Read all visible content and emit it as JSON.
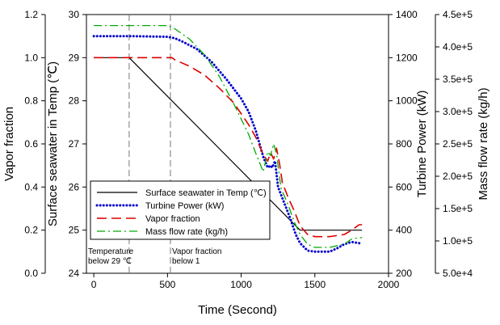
{
  "chart_data": {
    "type": "line",
    "title": "",
    "xlabel": "Time (Second)",
    "xlim": [
      -50,
      2000
    ],
    "xticks": [
      0,
      500,
      1000,
      1500,
      2000
    ],
    "axes": [
      {
        "id": "vapor",
        "label": "Vapor fraction",
        "position": "left-outer",
        "ylim": [
          0,
          1.2
        ],
        "ticks": [
          "0.0",
          "0.2",
          "0.4",
          "0.6",
          "0.8",
          "1.0",
          "1.2"
        ],
        "tick_values": [
          0,
          0.2,
          0.4,
          0.6,
          0.8,
          1.0,
          1.2
        ]
      },
      {
        "id": "temp",
        "label": "Surface seawater in Temp (℃)",
        "position": "left-inner",
        "ylim": [
          24,
          30
        ],
        "ticks": [
          "24",
          "25",
          "26",
          "27",
          "28",
          "29",
          "30"
        ],
        "tick_values": [
          24,
          25,
          26,
          27,
          28,
          29,
          30
        ]
      },
      {
        "id": "power",
        "label": "Turbine Power (kW)",
        "position": "right-inner",
        "ylim": [
          200,
          1400
        ],
        "ticks": [
          "200",
          "400",
          "600",
          "800",
          "1000",
          "1200",
          "1400"
        ],
        "tick_values": [
          200,
          400,
          600,
          800,
          1000,
          1200,
          1400
        ]
      },
      {
        "id": "flow",
        "label": "Mass flow rate (kg/h)",
        "position": "right-outer",
        "ylim": [
          50000,
          450000
        ],
        "ticks": [
          "5.0e+4",
          "1.0e+5",
          "1.5e+5",
          "2.0e+5",
          "2.5e+5",
          "3.0e+5",
          "3.5e+5",
          "4.0e+5",
          "4.5e+5"
        ],
        "tick_values": [
          50000,
          100000,
          150000,
          200000,
          250000,
          300000,
          350000,
          400000,
          450000
        ]
      }
    ],
    "series": [
      {
        "name": "Surface seawater in Temp (℃)",
        "axis": "temp",
        "color": "#000000",
        "style": "solid",
        "x": [
          0,
          240,
          1400,
          1820
        ],
        "y": [
          29,
          29,
          25,
          25
        ]
      },
      {
        "name": "Turbine Power (kW)",
        "axis": "power",
        "color": "#0000cc",
        "style": "dotted",
        "x": [
          0,
          250,
          500,
          550,
          600,
          700,
          800,
          900,
          1000,
          1050,
          1100,
          1150,
          1180,
          1200,
          1210,
          1230,
          1250,
          1290,
          1330,
          1370,
          1400,
          1450,
          1500,
          1600,
          1650,
          1700,
          1750,
          1800,
          1820
        ],
        "y": [
          1300,
          1300,
          1297,
          1290,
          1275,
          1240,
          1180,
          1100,
          1010,
          950,
          860,
          740,
          690,
          700,
          690,
          720,
          600,
          530,
          460,
          380,
          340,
          305,
          300,
          300,
          315,
          335,
          345,
          340,
          335
        ]
      },
      {
        "name": "Vapor fraction",
        "axis": "vapor",
        "color": "#dd0000",
        "style": "dashed",
        "x": [
          0,
          250,
          530,
          550,
          650,
          750,
          850,
          950,
          1050,
          1100,
          1150,
          1180,
          1200,
          1220,
          1240,
          1260,
          1280,
          1320,
          1360,
          1400,
          1450,
          1500,
          1600,
          1700,
          1750,
          1800,
          1820
        ],
        "y": [
          1.0,
          1.0,
          1.0,
          0.99,
          0.96,
          0.92,
          0.86,
          0.79,
          0.69,
          0.63,
          0.55,
          0.52,
          0.56,
          0.53,
          0.58,
          0.51,
          0.42,
          0.35,
          0.29,
          0.22,
          0.18,
          0.17,
          0.17,
          0.18,
          0.2,
          0.225,
          0.225
        ]
      },
      {
        "name": "Mass flow rate (kg/h)",
        "axis": "flow",
        "color": "#00aa00",
        "style": "dashdot",
        "x": [
          0,
          250,
          500,
          550,
          650,
          750,
          850,
          950,
          1050,
          1100,
          1150,
          1180,
          1200,
          1220,
          1240,
          1270,
          1320,
          1360,
          1400,
          1450,
          1500,
          1600,
          1700,
          1750,
          1800,
          1820
        ],
        "y": [
          433000,
          433000,
          433000,
          428000,
          412000,
          388000,
          355000,
          312000,
          265000,
          235000,
          207000,
          238000,
          232000,
          250000,
          235000,
          182000,
          155000,
          130000,
          110000,
          95000,
          90000,
          90000,
          95000,
          103000,
          105000,
          105000
        ]
      }
    ],
    "reference_lines": [
      {
        "x": 240,
        "label_lines": [
          "Temperature",
          "below 29 ℃"
        ]
      },
      {
        "x": 520,
        "label_lines": [
          "Vapor fraction",
          "below 1"
        ]
      }
    ],
    "legend_position": "lower-left"
  }
}
